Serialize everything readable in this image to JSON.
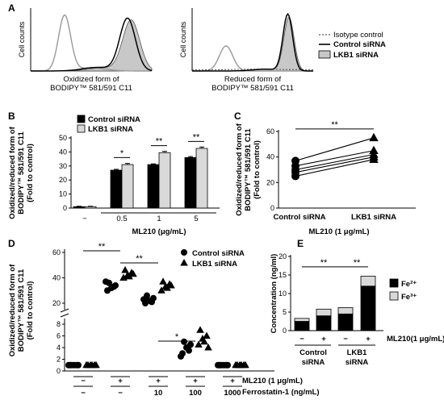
{
  "chart_data": [
    {
      "panel": "A",
      "type": "line",
      "subplots": [
        {
          "ylabel": "Cell counts",
          "xlabel_line1": "Oxidized form of",
          "xlabel_line2": "BODIPY™ 581/591 C11"
        },
        {
          "ylabel": "Cell counts",
          "xlabel_line1": "Reduced form of",
          "xlabel_line2": "BODIPY™ 581/591 C11"
        }
      ],
      "legend": [
        "Isotype control",
        "Control siRNA",
        "LKB1 siRNA"
      ],
      "colors": {
        "isotype": "#999999",
        "control": "#000000",
        "lkb1_fill": "#c8c8c8"
      }
    },
    {
      "panel": "B",
      "type": "bar",
      "ylabel": [
        "Oxidized/reduced form of",
        "BODIPY™ 581/591 C11",
        "(Fold to control)"
      ],
      "xlabel": "ML210 (μg/mL)",
      "categories": [
        "−",
        "0.5",
        "1",
        "5"
      ],
      "series": [
        {
          "name": "Control siRNA",
          "values": [
            1,
            27,
            31,
            36
          ],
          "errors": [
            0.3,
            0.6,
            0.5,
            0.7
          ],
          "color": "#000000"
        },
        {
          "name": "LKB1 siRNA",
          "values": [
            1,
            31,
            39.5,
            42.5
          ],
          "errors": [
            0.3,
            0.8,
            0.9,
            1.0
          ],
          "color": "#d9d9d9"
        }
      ],
      "ylim": [
        0,
        50
      ],
      "yticks": [
        0,
        10,
        20,
        30,
        40,
        50
      ],
      "significance": [
        "*",
        "**",
        "**"
      ]
    },
    {
      "panel": "C",
      "type": "scatter",
      "ylabel": [
        "Oxidized/reduced form of",
        "BODIPY™ 581/591 C11",
        "(Fold to control)"
      ],
      "xlabel": "ML210 (1 μg/mL)",
      "categories": [
        "Control siRNA",
        "LKB1 siRNA"
      ],
      "pairs": [
        [
          37,
          55
        ],
        [
          33,
          45
        ],
        [
          30,
          42
        ],
        [
          28,
          40
        ],
        [
          25,
          38
        ]
      ],
      "ylim": [
        0,
        60
      ],
      "yticks": [
        0,
        20,
        40,
        60
      ],
      "significance": "**"
    },
    {
      "panel": "D",
      "type": "scatter",
      "ylabel": [
        "Oxidized/reduced form of",
        "BODIPY™ 581/591 C11",
        "(Fold to control)"
      ],
      "legend": [
        "Control siRNA",
        "LKB1 siRNA"
      ],
      "groups": [
        {
          "ml210": "−",
          "ferrostatin": "−",
          "control": [
            1,
            1,
            1,
            1,
            1,
            1
          ],
          "lkb1": [
            1,
            1,
            1,
            1,
            1,
            1
          ]
        },
        {
          "ml210": "+",
          "ferrostatin": "−",
          "control": [
            30,
            32,
            34,
            36,
            33,
            37
          ],
          "lkb1": [
            40,
            42,
            44,
            46,
            41,
            43
          ]
        },
        {
          "ml210": "+",
          "ferrostatin": "10",
          "control": [
            20,
            22,
            24,
            26,
            21,
            23
          ],
          "lkb1": [
            30,
            33,
            35,
            37,
            32,
            34
          ]
        },
        {
          "ml210": "+",
          "ferrostatin": "100",
          "control": [
            3,
            4,
            4.5,
            5,
            3.5,
            2.5
          ],
          "lkb1": [
            4.5,
            5.5,
            6,
            7,
            5,
            4
          ]
        },
        {
          "ml210": "+",
          "ferrostatin": "1000",
          "control": [
            1,
            1,
            1,
            1,
            1,
            1
          ],
          "lkb1": [
            1,
            1,
            1,
            1,
            1,
            1
          ]
        }
      ],
      "yticks_lower": [
        0,
        2,
        4,
        6,
        8
      ],
      "yticks_upper": [
        20,
        40,
        60
      ],
      "row_labels": [
        "ML210 (1 μg/mL)",
        "Ferrostatin-1 (ng/mL)"
      ],
      "significance": [
        "**",
        "**",
        "*"
      ]
    },
    {
      "panel": "E",
      "type": "bar",
      "stacked": true,
      "ylabel": "Concentration (ng/ml)",
      "ylim": [
        0,
        20
      ],
      "yticks": [
        0,
        5,
        10,
        15,
        20
      ],
      "bars": [
        {
          "ml210": "−",
          "fe2": 2.5,
          "fe3": 0.8
        },
        {
          "ml210": "+",
          "fe2": 4,
          "fe3": 1.8
        },
        {
          "ml210": "−",
          "fe2": 4.5,
          "fe3": 1.7
        },
        {
          "ml210": "+",
          "fe2": 12,
          "fe3": 2.7
        }
      ],
      "group_labels": [
        [
          "Control",
          "siRNA"
        ],
        [
          "LKB1",
          "siRNA"
        ]
      ],
      "row_label": "ML210(1 μg/mL)",
      "legend": [
        "Fe²⁺",
        "Fe³⁺"
      ],
      "colors": {
        "fe2": "#000000",
        "fe3": "#d9d9d9"
      },
      "significance": [
        "**",
        "**"
      ]
    }
  ]
}
